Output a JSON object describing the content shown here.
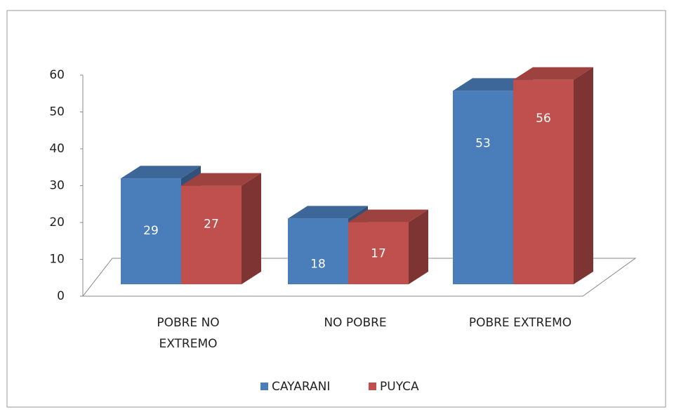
{
  "chart_data": {
    "type": "bar3d",
    "categories": [
      "POBRE NO EXTREMO",
      "NO POBRE",
      "POBRE EXTREMO"
    ],
    "series": [
      {
        "name": "CAYARANI",
        "color": "#4a7ebb",
        "values": [
          29,
          18,
          53
        ]
      },
      {
        "name": "PUYCA",
        "color": "#c0504d",
        "values": [
          27,
          17,
          56
        ]
      }
    ],
    "ylim": [
      0,
      60
    ],
    "yticks": [
      0,
      10,
      20,
      30,
      40,
      50,
      60
    ]
  }
}
